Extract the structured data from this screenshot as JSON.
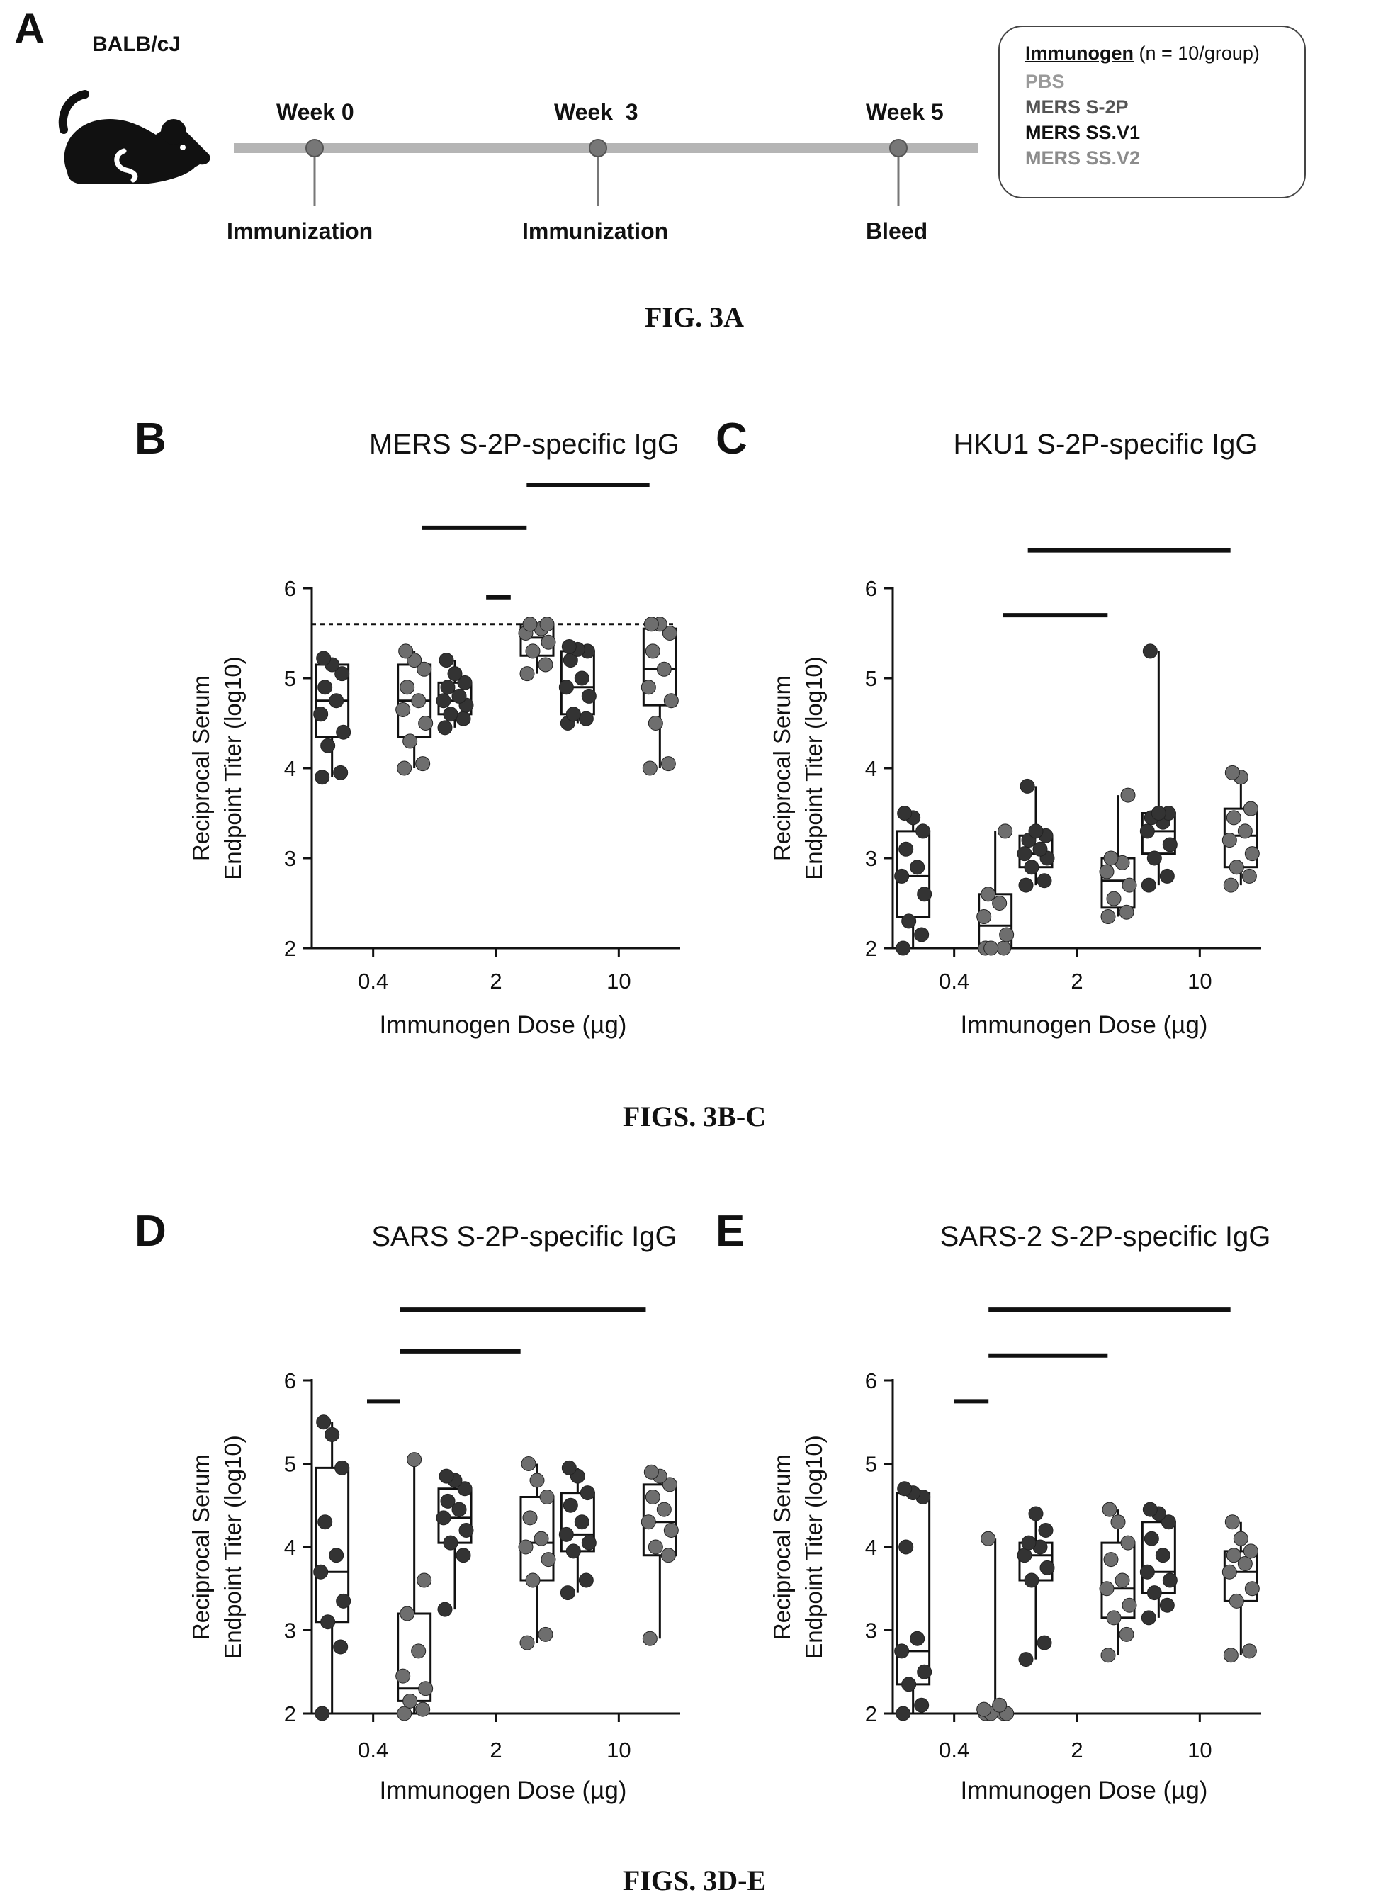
{
  "figure_a": {
    "panel_letter": "A",
    "strain": "BALB/cJ",
    "weeks": [
      "Week 0",
      "Week  3",
      "Week 5"
    ],
    "events": [
      "Immunization",
      "Immunization",
      "Bleed"
    ],
    "legend": {
      "heading": "Immunogen",
      "heading_note": " (n = 10/group)",
      "items": [
        "PBS",
        "MERS S-2P",
        "MERS SS.V1",
        "MERS SS.V2"
      ],
      "item_colors": [
        "#9a9a9a",
        "#555555",
        "#111111",
        "#8c8c8c"
      ]
    },
    "caption": "FIG. 3A"
  },
  "captions": {
    "b_c": "FIGS. 3B-C",
    "d_e": "FIGS. 3D-E"
  },
  "chart_data": [
    {
      "panel_letter": "B",
      "type": "box",
      "title": "MERS S-2P-specific IgG",
      "xlabel": "Immunogen Dose (µg)",
      "ylabel": [
        "Reciprocal Serum",
        "Endpoint Titer (log10)"
      ],
      "categories": [
        "0.4",
        "2",
        "10"
      ],
      "ylim": [
        2,
        6
      ],
      "yticks": [
        "2",
        "3",
        "4",
        "5",
        "6"
      ],
      "reference_line": 5.6,
      "series": [
        {
          "color": "#333333",
          "boxes": [
            {
              "min": 3.9,
              "q1": 4.35,
              "median": 4.75,
              "q3": 5.15,
              "max": 5.22,
              "points": [
                3.9,
                3.95,
                4.25,
                4.4,
                4.6,
                4.75,
                4.9,
                5.05,
                5.15,
                5.22
              ]
            },
            {
              "min": 4.45,
              "q1": 4.6,
              "median": 4.75,
              "q3": 4.95,
              "max": 5.2,
              "points": [
                4.45,
                4.55,
                4.6,
                4.7,
                4.75,
                4.8,
                4.9,
                4.95,
                5.05,
                5.2
              ]
            },
            {
              "min": 4.5,
              "q1": 4.6,
              "median": 4.9,
              "q3": 5.3,
              "max": 5.35,
              "points": [
                4.5,
                4.55,
                4.6,
                4.8,
                4.9,
                5.0,
                5.2,
                5.3,
                5.32,
                5.35
              ]
            }
          ]
        },
        {
          "color": "#6e6e6e",
          "boxes": [
            {
              "min": 4.0,
              "q1": 4.35,
              "median": 4.75,
              "q3": 5.15,
              "max": 5.3,
              "points": [
                4.0,
                4.05,
                4.3,
                4.5,
                4.65,
                4.75,
                4.9,
                5.1,
                5.2,
                5.3
              ]
            },
            {
              "min": 5.05,
              "q1": 5.25,
              "median": 5.45,
              "q3": 5.6,
              "max": 5.6,
              "points": [
                5.05,
                5.15,
                5.3,
                5.4,
                5.5,
                5.55,
                5.6,
                5.6
              ]
            },
            {
              "min": 4.0,
              "q1": 4.7,
              "median": 5.1,
              "q3": 5.55,
              "max": 5.6,
              "points": [
                4.0,
                4.05,
                4.5,
                4.75,
                4.9,
                5.1,
                5.3,
                5.5,
                5.6,
                5.6
              ]
            }
          ]
        }
      ],
      "significance_bars": [
        {
          "from": 0.4,
          "to": 1.25,
          "level": 6.67
        },
        {
          "from": 0.92,
          "to": 1.12,
          "level": 5.9
        },
        {
          "from": 1.25,
          "to": 2.25,
          "level": 7.15
        }
      ]
    },
    {
      "panel_letter": "C",
      "type": "box",
      "title": "HKU1 S-2P-specific IgG",
      "xlabel": "Immunogen Dose (µg)",
      "ylabel": [
        "Reciprocal Serum",
        "Endpoint Titer (log10)"
      ],
      "categories": [
        "0.4",
        "2",
        "10"
      ],
      "ylim": [
        2,
        6
      ],
      "yticks": [
        "2",
        "3",
        "4",
        "5",
        "6"
      ],
      "series": [
        {
          "color": "#333333",
          "boxes": [
            {
              "min": 2.0,
              "q1": 2.35,
              "median": 2.8,
              "q3": 3.3,
              "max": 3.5,
              "points": [
                2.0,
                2.15,
                2.3,
                2.6,
                2.8,
                2.9,
                3.1,
                3.3,
                3.45,
                3.5
              ]
            },
            {
              "min": 2.7,
              "q1": 2.9,
              "median": 3.05,
              "q3": 3.25,
              "max": 3.8,
              "points": [
                2.7,
                2.75,
                2.9,
                3.0,
                3.05,
                3.1,
                3.2,
                3.25,
                3.3,
                3.8
              ]
            },
            {
              "min": 2.7,
              "q1": 3.05,
              "median": 3.3,
              "q3": 3.5,
              "max": 5.3,
              "points": [
                2.7,
                2.8,
                3.0,
                3.15,
                3.3,
                3.4,
                3.45,
                3.5,
                3.5,
                5.3
              ]
            }
          ]
        },
        {
          "color": "#6e6e6e",
          "boxes": [
            {
              "min": 2.0,
              "q1": 2.0,
              "median": 2.25,
              "q3": 2.6,
              "max": 3.3,
              "points": [
                2.0,
                2.0,
                2.0,
                2.15,
                2.35,
                2.5,
                2.6,
                3.3
              ]
            },
            {
              "min": 2.35,
              "q1": 2.45,
              "median": 2.75,
              "q3": 3.0,
              "max": 3.7,
              "points": [
                2.35,
                2.4,
                2.55,
                2.7,
                2.85,
                2.95,
                3.0,
                3.7
              ]
            },
            {
              "min": 2.7,
              "q1": 2.9,
              "median": 3.25,
              "q3": 3.55,
              "max": 3.95,
              "points": [
                2.7,
                2.8,
                2.9,
                3.05,
                3.2,
                3.3,
                3.45,
                3.55,
                3.9,
                3.95
              ]
            }
          ]
        }
      ],
      "significance_bars": [
        {
          "from": 0.4,
          "to": 1.25,
          "level": 5.7
        },
        {
          "from": 0.6,
          "to": 2.25,
          "level": 6.42
        }
      ]
    },
    {
      "panel_letter": "D",
      "type": "box",
      "title": "SARS S-2P-specific IgG",
      "xlabel": "Immunogen Dose (µg)",
      "ylabel": [
        "Reciprocal Serum",
        "Endpoint Titer (log10)"
      ],
      "categories": [
        "0.4",
        "2",
        "10"
      ],
      "ylim": [
        2,
        6
      ],
      "yticks": [
        "2",
        "3",
        "4",
        "5",
        "6"
      ],
      "series": [
        {
          "color": "#333333",
          "boxes": [
            {
              "min": 2.0,
              "q1": 3.1,
              "median": 3.7,
              "q3": 4.95,
              "max": 5.5,
              "points": [
                2.0,
                2.8,
                3.1,
                3.35,
                3.7,
                3.9,
                4.3,
                4.95,
                5.35,
                5.5
              ]
            },
            {
              "min": 3.25,
              "q1": 4.05,
              "median": 4.35,
              "q3": 4.7,
              "max": 4.85,
              "points": [
                3.25,
                3.9,
                4.05,
                4.2,
                4.35,
                4.45,
                4.55,
                4.7,
                4.8,
                4.85
              ]
            },
            {
              "min": 3.45,
              "q1": 3.95,
              "median": 4.15,
              "q3": 4.65,
              "max": 4.95,
              "points": [
                3.45,
                3.6,
                3.95,
                4.05,
                4.15,
                4.3,
                4.5,
                4.65,
                4.85,
                4.95
              ]
            }
          ]
        },
        {
          "color": "#6e6e6e",
          "boxes": [
            {
              "min": 2.0,
              "q1": 2.15,
              "median": 2.3,
              "q3": 3.2,
              "max": 5.05,
              "points": [
                2.0,
                2.05,
                2.15,
                2.3,
                2.45,
                2.75,
                3.2,
                3.6,
                5.05
              ]
            },
            {
              "min": 2.85,
              "q1": 3.6,
              "median": 4.05,
              "q3": 4.6,
              "max": 5.0,
              "points": [
                2.85,
                2.95,
                3.6,
                3.85,
                4.0,
                4.1,
                4.35,
                4.6,
                4.8,
                5.0
              ]
            },
            {
              "min": 2.9,
              "q1": 3.9,
              "median": 4.3,
              "q3": 4.75,
              "max": 4.9,
              "points": [
                2.9,
                3.9,
                4.0,
                4.2,
                4.3,
                4.45,
                4.6,
                4.75,
                4.85,
                4.9
              ]
            }
          ]
        }
      ],
      "significance_bars": [
        {
          "from": -0.05,
          "to": 0.22,
          "level": 5.75
        },
        {
          "from": 0.22,
          "to": 1.2,
          "level": 6.35
        },
        {
          "from": 0.22,
          "to": 2.22,
          "level": 6.85
        }
      ]
    },
    {
      "panel_letter": "E",
      "type": "box",
      "title": "SARS-2 S-2P-specific IgG",
      "xlabel": "Immunogen Dose (µg)",
      "ylabel": [
        "Reciprocal Serum",
        "Endpoint Titer (log10)"
      ],
      "categories": [
        "0.4",
        "2",
        "10"
      ],
      "ylim": [
        2,
        6
      ],
      "yticks": [
        "2",
        "3",
        "4",
        "5",
        "6"
      ],
      "series": [
        {
          "color": "#333333",
          "boxes": [
            {
              "min": 2.0,
              "q1": 2.35,
              "median": 2.75,
              "q3": 4.65,
              "max": 4.7,
              "points": [
                2.0,
                2.1,
                2.35,
                2.5,
                2.75,
                2.9,
                4.0,
                4.6,
                4.65,
                4.7
              ]
            },
            {
              "min": 2.65,
              "q1": 3.6,
              "median": 3.9,
              "q3": 4.05,
              "max": 4.4,
              "points": [
                2.65,
                2.85,
                3.6,
                3.75,
                3.9,
                4.0,
                4.05,
                4.2,
                4.4
              ]
            },
            {
              "min": 3.15,
              "q1": 3.45,
              "median": 3.7,
              "q3": 4.3,
              "max": 4.45,
              "points": [
                3.15,
                3.3,
                3.45,
                3.6,
                3.7,
                3.9,
                4.1,
                4.3,
                4.4,
                4.45
              ]
            }
          ]
        },
        {
          "color": "#6e6e6e",
          "boxes": [
            {
              "min": 2.0,
              "q1": 2.0,
              "median": 2.0,
              "q3": 2.05,
              "max": 4.1,
              "points": [
                2.0,
                2.0,
                2.0,
                2.0,
                2.05,
                2.1,
                4.1
              ]
            },
            {
              "min": 2.7,
              "q1": 3.15,
              "median": 3.5,
              "q3": 4.05,
              "max": 4.45,
              "points": [
                2.7,
                2.95,
                3.15,
                3.3,
                3.5,
                3.6,
                3.85,
                4.05,
                4.3,
                4.45
              ]
            },
            {
              "min": 2.7,
              "q1": 3.35,
              "median": 3.7,
              "q3": 3.95,
              "max": 4.3,
              "points": [
                2.7,
                2.75,
                3.35,
                3.5,
                3.7,
                3.8,
                3.9,
                3.95,
                4.1,
                4.3
              ]
            }
          ]
        }
      ],
      "significance_bars": [
        {
          "from": 0.0,
          "to": 0.28,
          "level": 5.75
        },
        {
          "from": 0.28,
          "to": 1.25,
          "level": 6.3
        },
        {
          "from": 0.28,
          "to": 2.25,
          "level": 6.85
        }
      ]
    }
  ]
}
